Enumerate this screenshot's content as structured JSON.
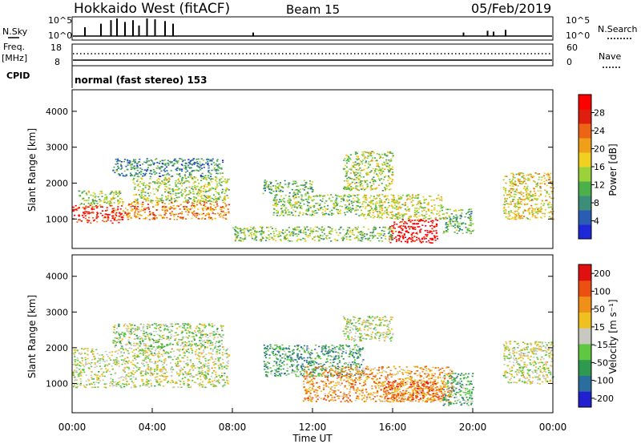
{
  "header": {
    "title": "Hokkaido West (fitACF)",
    "beam": "Beam 15",
    "date": "05/Feb/2019"
  },
  "summary_panels": {
    "nsky_label": "N.Sky",
    "nsearch_label": "N.Search",
    "freq_label_line1": "Freq.",
    "freq_label_line2": "[MHz]",
    "nave_label": "Nave",
    "cpid_label": "CPID",
    "cpid_value": "normal (fast stereo) 153",
    "noise_ticks": [
      "10^5",
      "10^0"
    ],
    "freq_ticks": [
      "18",
      "8"
    ],
    "nave_ticks": [
      "60",
      "0"
    ]
  },
  "chart_data": [
    {
      "type": "heatmap",
      "name": "power",
      "ylabel": "Slant Range [km]",
      "xlabel": "",
      "xlim": [
        0,
        24
      ],
      "ylim": [
        180,
        4600
      ],
      "yticks": [
        "1000",
        "2000",
        "3000",
        "4000"
      ],
      "colorbar_label": "Power [dB]",
      "colorbar_ticks": [
        "4",
        "8",
        "12",
        "16",
        "20",
        "24",
        "28"
      ],
      "colorbar_colors": [
        "#1e28d8",
        "#2a5cb4",
        "#3c8e78",
        "#4cb04a",
        "#9ad23a",
        "#f0d020",
        "#f0a018",
        "#ec6414",
        "#e01e10",
        "#ff0000"
      ],
      "grid": false,
      "regions": [
        {
          "t": [
            0.0,
            2.5
          ],
          "r": [
            900,
            1400
          ],
          "level": 0.85
        },
        {
          "t": [
            0.3,
            2.5
          ],
          "r": [
            1400,
            1800
          ],
          "level": 0.45
        },
        {
          "t": [
            2.5,
            7.8
          ],
          "r": [
            1000,
            1500
          ],
          "level": 0.7
        },
        {
          "t": [
            3.0,
            7.8
          ],
          "r": [
            1500,
            2200
          ],
          "level": 0.45
        },
        {
          "t": [
            2.0,
            7.5
          ],
          "r": [
            2200,
            2700
          ],
          "level": 0.25
        },
        {
          "t": [
            10.0,
            14.5
          ],
          "r": [
            1100,
            1700
          ],
          "level": 0.4
        },
        {
          "t": [
            9.5,
            12.0
          ],
          "r": [
            1700,
            2100
          ],
          "level": 0.35
        },
        {
          "t": [
            13.5,
            16.0
          ],
          "r": [
            1800,
            2900
          ],
          "level": 0.45
        },
        {
          "t": [
            14.5,
            18.5
          ],
          "r": [
            1000,
            1700
          ],
          "level": 0.5
        },
        {
          "t": [
            15.8,
            18.2
          ],
          "r": [
            350,
            1000
          ],
          "level": 0.95
        },
        {
          "t": [
            8.0,
            16.0
          ],
          "r": [
            400,
            800
          ],
          "level": 0.4
        },
        {
          "t": [
            18.5,
            20.0
          ],
          "r": [
            600,
            1300
          ],
          "level": 0.35
        },
        {
          "t": [
            21.5,
            24.0
          ],
          "r": [
            1000,
            2300
          ],
          "level": 0.55
        }
      ]
    },
    {
      "type": "heatmap",
      "name": "velocity",
      "ylabel": "Slant Range [km]",
      "xlabel": "Time UT",
      "xlim": [
        0,
        24
      ],
      "ylim": [
        180,
        4600
      ],
      "xticks": [
        "00:00",
        "04:00",
        "08:00",
        "12:00",
        "16:00",
        "20:00",
        "00:00"
      ],
      "yticks": [
        "1000",
        "2000",
        "3000",
        "4000"
      ],
      "colorbar_label": "Velocity [m s⁻¹]",
      "colorbar_ticks": [
        "200",
        "100",
        "50",
        "15",
        "-15",
        "-50",
        "-100",
        "-200"
      ],
      "colorbar_colors": [
        "#2020d0",
        "#2a6ea0",
        "#2e9a50",
        "#60c840",
        "#c8c8c0",
        "#f0c020",
        "#f09018",
        "#ec5010",
        "#e01010"
      ],
      "grid": false,
      "regions": [
        {
          "t": [
            0.0,
            7.8
          ],
          "r": [
            900,
            2000
          ],
          "level": 0.5
        },
        {
          "t": [
            2.0,
            7.5
          ],
          "r": [
            2000,
            2700
          ],
          "level": 0.45
        },
        {
          "t": [
            9.5,
            14.5
          ],
          "r": [
            1200,
            2100
          ],
          "level": 0.3
        },
        {
          "t": [
            13.5,
            16.0
          ],
          "r": [
            2200,
            2900
          ],
          "level": 0.5
        },
        {
          "t": [
            11.5,
            19.0
          ],
          "r": [
            500,
            1500
          ],
          "level": 0.7
        },
        {
          "t": [
            15.5,
            18.5
          ],
          "r": [
            500,
            1100
          ],
          "level": 0.8
        },
        {
          "t": [
            18.5,
            20.0
          ],
          "r": [
            400,
            1300
          ],
          "level": 0.35
        },
        {
          "t": [
            21.5,
            24.0
          ],
          "r": [
            1000,
            2200
          ],
          "level": 0.5
        }
      ]
    }
  ]
}
